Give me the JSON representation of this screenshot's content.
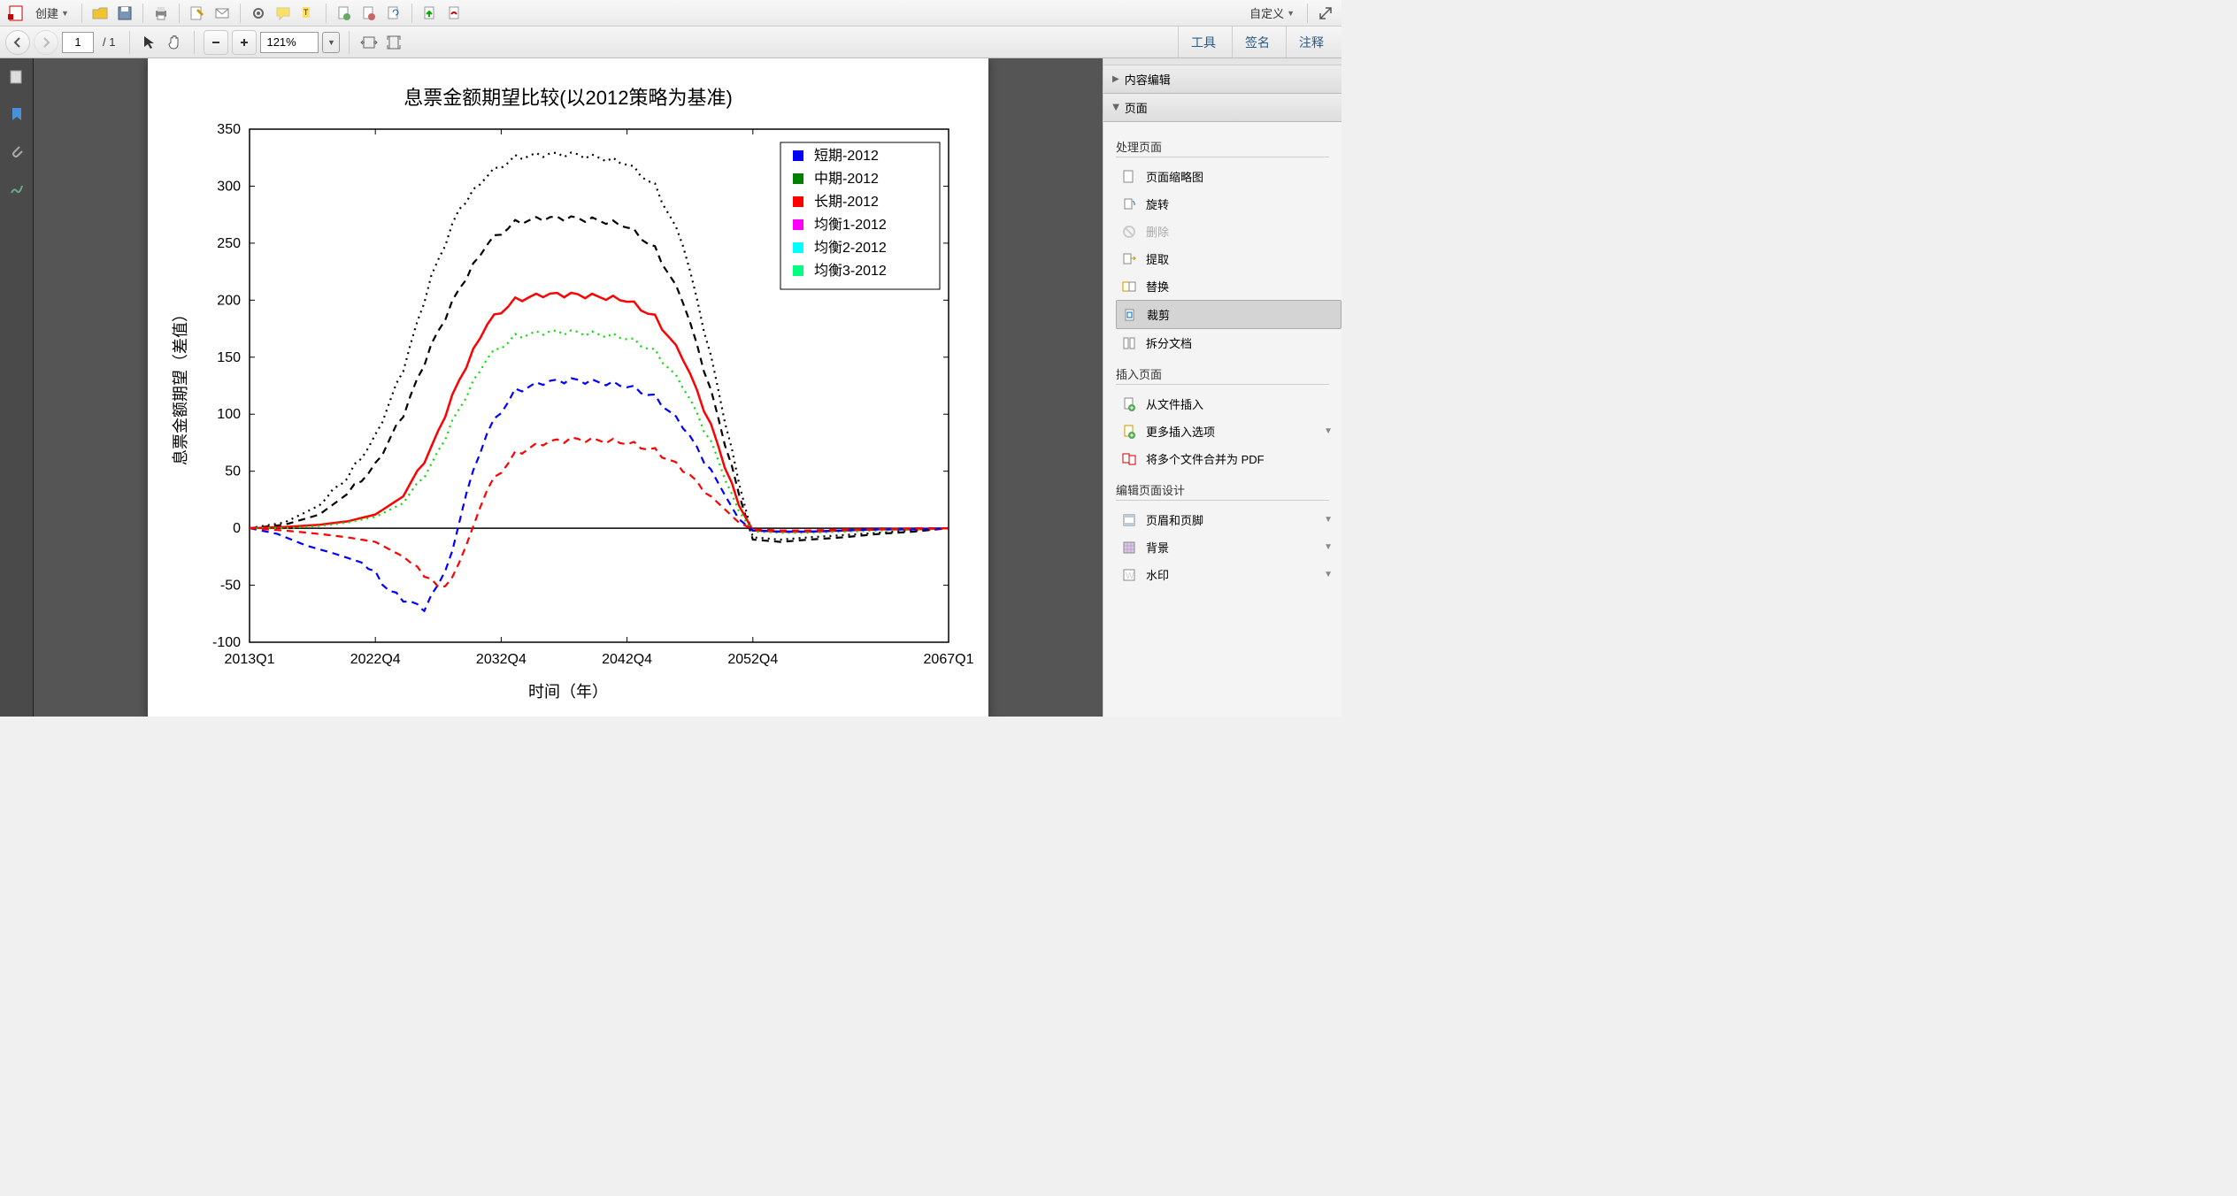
{
  "toolbar1": {
    "create_label": "创建",
    "right_label": "自定义"
  },
  "toolbar2": {
    "page_current": "1",
    "page_total": "/ 1",
    "zoom_value": "121%",
    "tabs": {
      "tools": "工具",
      "sign": "签名",
      "comment": "注释"
    }
  },
  "rightpanel": {
    "headers": {
      "content_edit": "内容编辑",
      "pages": "页面"
    },
    "sections": {
      "process": "处理页面",
      "insert": "插入页面",
      "design": "编辑页面设计"
    },
    "items": {
      "thumbnails": "页面缩略图",
      "rotate": "旋转",
      "delete": "删除",
      "extract": "提取",
      "replace": "替换",
      "crop": "裁剪",
      "split": "拆分文档",
      "from_file": "从文件插入",
      "more_insert": "更多插入选项",
      "combine_pdf": "将多个文件合并为 PDF",
      "header_footer": "页眉和页脚",
      "background": "背景",
      "watermark": "水印"
    }
  },
  "chart": {
    "title": "息票金额期望比较(以2012策略为基准)",
    "xlabel": "时间（年）",
    "ylabel": "息票金额期望（差值）",
    "title_fontsize": 22,
    "label_fontsize": 18,
    "tick_fontsize": 16,
    "background_color": "#ffffff",
    "axis_color": "#000000",
    "xlim": [
      0,
      100
    ],
    "ylim": [
      -100,
      350
    ],
    "ytick_step": 50,
    "yticks": [
      -100,
      -50,
      0,
      50,
      100,
      150,
      200,
      250,
      300,
      350
    ],
    "xticks_pos": [
      0,
      18,
      36,
      54,
      72,
      100
    ],
    "xtick_labels": [
      "2013Q1",
      "2022Q4",
      "2032Q4",
      "2042Q4",
      "2052Q4",
      "2067Q1"
    ],
    "legend": {
      "entries": [
        {
          "label": "短期-2012",
          "marker_color": "#0000ff"
        },
        {
          "label": "中期-2012",
          "marker_color": "#008000"
        },
        {
          "label": "长期-2012",
          "marker_color": "#ff0000"
        },
        {
          "label": "均衡1-2012",
          "marker_color": "#ff00ff"
        },
        {
          "label": "均衡2-2012",
          "marker_color": "#00ffff"
        },
        {
          "label": "均衡3-2012",
          "marker_color": "#00ff80"
        }
      ],
      "font_size": 16,
      "border_color": "#000000"
    },
    "series": [
      {
        "name": "black-dotted-upper",
        "color": "#000000",
        "style": "dotted",
        "width": 2.2,
        "data": [
          [
            0,
            0
          ],
          [
            5,
            5
          ],
          [
            10,
            20
          ],
          [
            14,
            45
          ],
          [
            18,
            80
          ],
          [
            22,
            140
          ],
          [
            26,
            220
          ],
          [
            30,
            280
          ],
          [
            34,
            310
          ],
          [
            38,
            325
          ],
          [
            42,
            328
          ],
          [
            46,
            328
          ],
          [
            50,
            325
          ],
          [
            54,
            320
          ],
          [
            58,
            300
          ],
          [
            62,
            250
          ],
          [
            66,
            150
          ],
          [
            70,
            40
          ],
          [
            72,
            -8
          ],
          [
            76,
            -10
          ],
          [
            80,
            -8
          ],
          [
            85,
            -6
          ],
          [
            90,
            -4
          ],
          [
            95,
            -2
          ],
          [
            100,
            0
          ]
        ]
      },
      {
        "name": "black-dashed-lower",
        "color": "#000000",
        "style": "dashed",
        "width": 2.2,
        "data": [
          [
            0,
            0
          ],
          [
            5,
            3
          ],
          [
            10,
            12
          ],
          [
            14,
            30
          ],
          [
            18,
            55
          ],
          [
            22,
            100
          ],
          [
            26,
            160
          ],
          [
            30,
            210
          ],
          [
            34,
            250
          ],
          [
            38,
            268
          ],
          [
            42,
            272
          ],
          [
            46,
            272
          ],
          [
            50,
            270
          ],
          [
            54,
            265
          ],
          [
            58,
            245
          ],
          [
            62,
            200
          ],
          [
            66,
            120
          ],
          [
            70,
            30
          ],
          [
            72,
            -10
          ],
          [
            76,
            -12
          ],
          [
            80,
            -10
          ],
          [
            85,
            -8
          ],
          [
            90,
            -5
          ],
          [
            95,
            -3
          ],
          [
            100,
            0
          ]
        ]
      },
      {
        "name": "red-solid",
        "color": "#ff0000",
        "style": "solid",
        "width": 2.5,
        "data": [
          [
            0,
            0
          ],
          [
            5,
            1
          ],
          [
            10,
            3
          ],
          [
            14,
            6
          ],
          [
            18,
            12
          ],
          [
            22,
            28
          ],
          [
            26,
            70
          ],
          [
            30,
            130
          ],
          [
            34,
            180
          ],
          [
            38,
            200
          ],
          [
            42,
            205
          ],
          [
            46,
            205
          ],
          [
            50,
            203
          ],
          [
            54,
            200
          ],
          [
            58,
            185
          ],
          [
            62,
            150
          ],
          [
            66,
            90
          ],
          [
            70,
            20
          ],
          [
            72,
            -2
          ],
          [
            76,
            -3
          ],
          [
            80,
            -3
          ],
          [
            85,
            -2
          ],
          [
            90,
            -1
          ],
          [
            95,
            -1
          ],
          [
            100,
            0
          ]
        ]
      },
      {
        "name": "green-dotted",
        "color": "#00e000",
        "style": "dotted",
        "width": 2.2,
        "data": [
          [
            0,
            0
          ],
          [
            5,
            0
          ],
          [
            10,
            2
          ],
          [
            14,
            5
          ],
          [
            18,
            10
          ],
          [
            22,
            22
          ],
          [
            26,
            55
          ],
          [
            30,
            105
          ],
          [
            34,
            150
          ],
          [
            38,
            168
          ],
          [
            42,
            172
          ],
          [
            46,
            172
          ],
          [
            50,
            170
          ],
          [
            54,
            167
          ],
          [
            58,
            155
          ],
          [
            62,
            125
          ],
          [
            66,
            75
          ],
          [
            70,
            15
          ],
          [
            72,
            -3
          ],
          [
            76,
            -4
          ],
          [
            80,
            -4
          ],
          [
            85,
            -3
          ],
          [
            90,
            -2
          ],
          [
            95,
            -1
          ],
          [
            100,
            0
          ]
        ]
      },
      {
        "name": "blue-dashed",
        "color": "#0000ff",
        "style": "dashed",
        "width": 2.2,
        "data": [
          [
            0,
            0
          ],
          [
            4,
            -5
          ],
          [
            8,
            -15
          ],
          [
            12,
            -22
          ],
          [
            16,
            -30
          ],
          [
            18,
            -40
          ],
          [
            20,
            -55
          ],
          [
            22,
            -62
          ],
          [
            24,
            -68
          ],
          [
            25,
            -70
          ],
          [
            27,
            -50
          ],
          [
            29,
            -20
          ],
          [
            31,
            30
          ],
          [
            34,
            85
          ],
          [
            38,
            120
          ],
          [
            42,
            128
          ],
          [
            46,
            130
          ],
          [
            50,
            128
          ],
          [
            54,
            125
          ],
          [
            58,
            115
          ],
          [
            62,
            90
          ],
          [
            66,
            50
          ],
          [
            70,
            8
          ],
          [
            72,
            -2
          ],
          [
            76,
            -3
          ],
          [
            80,
            -3
          ],
          [
            85,
            -2
          ],
          [
            90,
            -1
          ],
          [
            95,
            -1
          ],
          [
            100,
            0
          ]
        ]
      },
      {
        "name": "red-dashed-lower",
        "color": "#ff0000",
        "style": "dashed",
        "width": 2.2,
        "data": [
          [
            0,
            0
          ],
          [
            5,
            -2
          ],
          [
            10,
            -5
          ],
          [
            14,
            -8
          ],
          [
            18,
            -12
          ],
          [
            22,
            -25
          ],
          [
            25,
            -40
          ],
          [
            27,
            -52
          ],
          [
            29,
            -45
          ],
          [
            31,
            -15
          ],
          [
            34,
            35
          ],
          [
            38,
            65
          ],
          [
            42,
            75
          ],
          [
            46,
            78
          ],
          [
            50,
            77
          ],
          [
            54,
            75
          ],
          [
            58,
            68
          ],
          [
            62,
            52
          ],
          [
            66,
            28
          ],
          [
            70,
            5
          ],
          [
            72,
            -1
          ],
          [
            76,
            -2
          ],
          [
            80,
            -2
          ],
          [
            85,
            -1
          ],
          [
            90,
            -1
          ],
          [
            95,
            0
          ],
          [
            100,
            0
          ]
        ]
      }
    ],
    "zero_line_color": "#000000"
  }
}
